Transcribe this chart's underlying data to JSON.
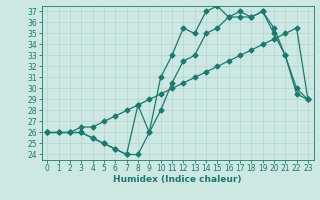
{
  "xlabel": "Humidex (Indice chaleur)",
  "bg_color": "#cde8e2",
  "line_color": "#1a7a6e",
  "grid_color": "#b8d8d2",
  "xlim": [
    -0.5,
    23.5
  ],
  "ylim": [
    23.5,
    37.5
  ],
  "xticks": [
    0,
    1,
    2,
    3,
    4,
    5,
    6,
    7,
    8,
    9,
    10,
    11,
    12,
    13,
    14,
    15,
    16,
    17,
    18,
    19,
    20,
    21,
    22,
    23
  ],
  "yticks": [
    24,
    25,
    26,
    27,
    28,
    29,
    30,
    31,
    32,
    33,
    34,
    35,
    36,
    37
  ],
  "line1_x": [
    0,
    1,
    2,
    3,
    4,
    5,
    6,
    7,
    8,
    9,
    10,
    11,
    12,
    13,
    14,
    15,
    16,
    17,
    18,
    19,
    20,
    21,
    22,
    23
  ],
  "line1_y": [
    26.0,
    26.0,
    26.0,
    26.5,
    26.5,
    27.0,
    27.5,
    28.0,
    28.5,
    29.0,
    29.5,
    30.0,
    30.5,
    31.0,
    31.5,
    32.0,
    32.5,
    33.0,
    33.5,
    34.0,
    34.5,
    35.0,
    35.5,
    29.0
  ],
  "line2_x": [
    0,
    1,
    2,
    3,
    4,
    5,
    6,
    7,
    8,
    9,
    10,
    11,
    12,
    13,
    14,
    15,
    16,
    17,
    18,
    19,
    20,
    21,
    22,
    23
  ],
  "line2_y": [
    26.0,
    26.0,
    26.0,
    26.0,
    25.5,
    25.0,
    24.5,
    24.0,
    28.5,
    26.0,
    31.0,
    33.0,
    35.5,
    35.0,
    37.0,
    37.5,
    36.5,
    36.5,
    36.5,
    37.0,
    35.5,
    33.0,
    30.0,
    29.0
  ],
  "line3_x": [
    0,
    2,
    3,
    4,
    5,
    6,
    7,
    8,
    9,
    10,
    11,
    12,
    13,
    14,
    15,
    16,
    17,
    18,
    19,
    20,
    21,
    22,
    23
  ],
  "line3_y": [
    26.0,
    26.0,
    26.0,
    25.5,
    25.0,
    24.5,
    24.0,
    24.0,
    26.0,
    28.0,
    30.5,
    32.5,
    33.0,
    35.0,
    35.5,
    36.5,
    37.0,
    36.5,
    37.0,
    35.0,
    33.0,
    29.5,
    29.0
  ],
  "markersize": 2.5,
  "linewidth": 0.9,
  "xlabel_fontsize": 6.5,
  "tick_fontsize": 5.5
}
